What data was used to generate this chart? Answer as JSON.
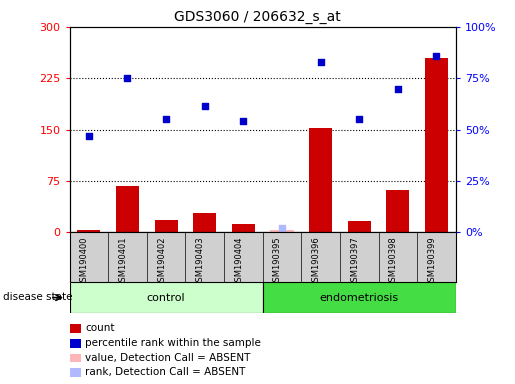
{
  "title": "GDS3060 / 206632_s_at",
  "samples": [
    "GSM190400",
    "GSM190401",
    "GSM190402",
    "GSM190403",
    "GSM190404",
    "GSM190395",
    "GSM190396",
    "GSM190397",
    "GSM190398",
    "GSM190399"
  ],
  "groups": [
    "control",
    "control",
    "control",
    "control",
    "control",
    "endometriosis",
    "endometriosis",
    "endometriosis",
    "endometriosis",
    "endometriosis"
  ],
  "red_bars": [
    3,
    68,
    18,
    28,
    12,
    0,
    152,
    16,
    62,
    255
  ],
  "blue_dots": [
    140,
    225,
    165,
    185,
    162,
    null,
    248,
    165,
    210,
    258
  ],
  "absent_value_bar": [
    null,
    null,
    null,
    null,
    null,
    3,
    null,
    null,
    null,
    null
  ],
  "absent_rank_dot": [
    null,
    null,
    null,
    null,
    null,
    6,
    null,
    null,
    null,
    null
  ],
  "ylim_left": [
    0,
    300
  ],
  "ylim_right": [
    0,
    100
  ],
  "yticks_left": [
    0,
    75,
    150,
    225,
    300
  ],
  "yticks_right": [
    0,
    25,
    50,
    75,
    100
  ],
  "ytick_labels_left": [
    "0",
    "75",
    "150",
    "225",
    "300"
  ],
  "ytick_labels_right": [
    "0%",
    "25%",
    "50%",
    "75%",
    "100%"
  ],
  "bar_color": "#cc0000",
  "dot_color": "#0000cc",
  "absent_value_color": "#ffb6b6",
  "absent_rank_color": "#b0b8ff",
  "bg_gray": "#d0d0d0",
  "control_color": "#ccffcc",
  "endo_color": "#44dd44",
  "legend_items": [
    {
      "label": "count",
      "color": "#cc0000"
    },
    {
      "label": "percentile rank within the sample",
      "color": "#0000cc"
    },
    {
      "label": "value, Detection Call = ABSENT",
      "color": "#ffb6b6"
    },
    {
      "label": "rank, Detection Call = ABSENT",
      "color": "#b0b8ff"
    }
  ]
}
